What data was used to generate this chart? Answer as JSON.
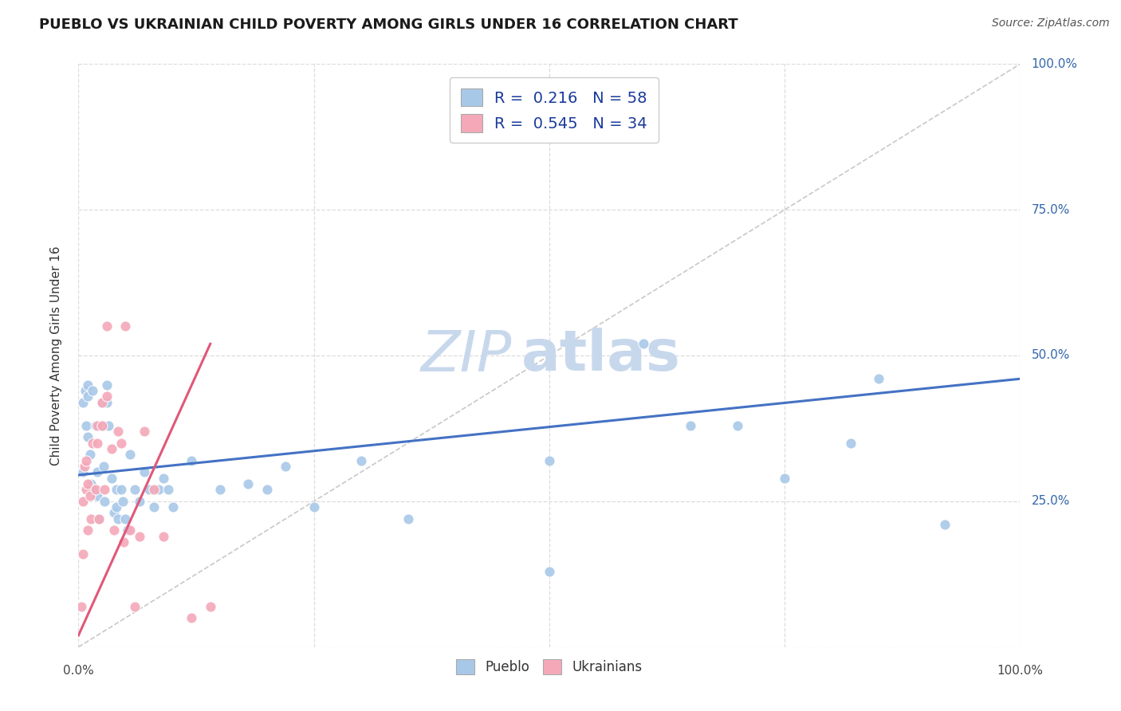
{
  "title": "PUEBLO VS UKRAINIAN CHILD POVERTY AMONG GIRLS UNDER 16 CORRELATION CHART",
  "source": "Source: ZipAtlas.com",
  "ylabel": "Child Poverty Among Girls Under 16",
  "xlim": [
    0,
    1
  ],
  "ylim": [
    0,
    1
  ],
  "pueblo_R": 0.216,
  "pueblo_N": 58,
  "ukrainian_R": 0.545,
  "ukrainian_N": 34,
  "pueblo_color": "#A8C8E8",
  "ukrainian_color": "#F4A8B8",
  "pueblo_line_color": "#4472C4",
  "ukrainian_line_color": "#E05878",
  "diagonal_color": "#C8C8C8",
  "watermark_zip": "ZIP",
  "watermark_atlas": "atlas",
  "pueblo_x": [
    0.005,
    0.005,
    0.007,
    0.008,
    0.01,
    0.01,
    0.01,
    0.012,
    0.013,
    0.015,
    0.015,
    0.018,
    0.02,
    0.02,
    0.022,
    0.025,
    0.025,
    0.027,
    0.028,
    0.03,
    0.03,
    0.032,
    0.035,
    0.038,
    0.04,
    0.04,
    0.042,
    0.045,
    0.047,
    0.05,
    0.052,
    0.055,
    0.06,
    0.065,
    0.07,
    0.075,
    0.08,
    0.085,
    0.09,
    0.095,
    0.1,
    0.12,
    0.15,
    0.18,
    0.2,
    0.22,
    0.25,
    0.3,
    0.35,
    0.5,
    0.5,
    0.6,
    0.65,
    0.7,
    0.75,
    0.82,
    0.85,
    0.92
  ],
  "pueblo_y": [
    0.3,
    0.42,
    0.44,
    0.38,
    0.45,
    0.43,
    0.36,
    0.33,
    0.28,
    0.27,
    0.44,
    0.38,
    0.3,
    0.26,
    0.22,
    0.42,
    0.38,
    0.31,
    0.25,
    0.45,
    0.42,
    0.38,
    0.29,
    0.23,
    0.27,
    0.24,
    0.22,
    0.27,
    0.25,
    0.22,
    0.2,
    0.33,
    0.27,
    0.25,
    0.3,
    0.27,
    0.24,
    0.27,
    0.29,
    0.27,
    0.24,
    0.32,
    0.27,
    0.28,
    0.27,
    0.31,
    0.24,
    0.32,
    0.22,
    0.32,
    0.13,
    0.52,
    0.38,
    0.38,
    0.29,
    0.35,
    0.46,
    0.21
  ],
  "ukrainian_x": [
    0.003,
    0.005,
    0.005,
    0.006,
    0.008,
    0.008,
    0.01,
    0.01,
    0.012,
    0.013,
    0.015,
    0.018,
    0.02,
    0.02,
    0.022,
    0.025,
    0.025,
    0.028,
    0.03,
    0.03,
    0.035,
    0.038,
    0.042,
    0.045,
    0.048,
    0.05,
    0.055,
    0.06,
    0.065,
    0.07,
    0.08,
    0.09,
    0.12,
    0.14
  ],
  "ukrainian_y": [
    0.07,
    0.16,
    0.25,
    0.31,
    0.27,
    0.32,
    0.28,
    0.2,
    0.26,
    0.22,
    0.35,
    0.27,
    0.38,
    0.35,
    0.22,
    0.42,
    0.38,
    0.27,
    0.55,
    0.43,
    0.34,
    0.2,
    0.37,
    0.35,
    0.18,
    0.55,
    0.2,
    0.07,
    0.19,
    0.37,
    0.27,
    0.19,
    0.05,
    0.07
  ],
  "pueblo_line_x_start": 0.0,
  "pueblo_line_x_end": 1.0,
  "pueblo_line_y_start": 0.295,
  "pueblo_line_y_end": 0.46,
  "ukrainian_line_x_start": 0.0,
  "ukrainian_line_x_end": 0.14,
  "ukrainian_line_y_start": 0.02,
  "ukrainian_line_y_end": 0.52,
  "background_color": "#FFFFFF",
  "grid_color": "#DCDCDC",
  "title_fontsize": 13,
  "axis_label_fontsize": 11,
  "legend_fontsize": 14,
  "watermark_fontsize_zip": 52,
  "watermark_fontsize_atlas": 52,
  "watermark_color": "#C8D8EC",
  "source_fontsize": 10
}
